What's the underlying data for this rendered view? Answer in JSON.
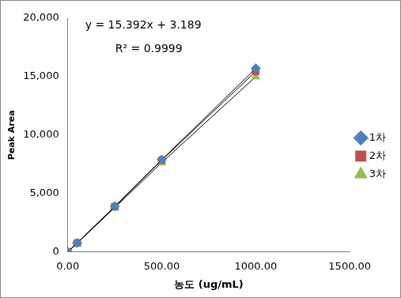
{
  "chart_data": {
    "type": "scatter",
    "x_label": "농도 (ug/mL)",
    "y_label": "Peak Area",
    "annotations": [
      "y = 15.392x + 3.189",
      "R² = 0.9999"
    ],
    "x": [
      0,
      50,
      250,
      500,
      1000
    ],
    "series": [
      {
        "name": "1차",
        "color": "#4f81bd",
        "marker": "diamond",
        "values": [
          0,
          780,
          3900,
          7900,
          15700
        ]
      },
      {
        "name": "2차",
        "color": "#c0504d",
        "marker": "square",
        "values": [
          0,
          770,
          3880,
          7850,
          15450
        ]
      },
      {
        "name": "3차",
        "color": "#9bbb59",
        "marker": "triangle",
        "values": [
          0,
          760,
          3800,
          7650,
          15000
        ]
      }
    ],
    "xlim": [
      0,
      1500
    ],
    "xticks": [
      {
        "value": 0,
        "label": "0.00"
      },
      {
        "value": 500,
        "label": "500.00"
      },
      {
        "value": 1000,
        "label": "1000.00"
      },
      {
        "value": 1500,
        "label": "1500.00"
      }
    ],
    "ylim": [
      0,
      20000
    ],
    "yticks": [
      0,
      {
        "value": 5000,
        "label": "5,000"
      },
      {
        "value": 10000,
        "label": "10,000"
      },
      {
        "value": 15000,
        "label": "15,000"
      },
      {
        "value": 20000,
        "label": "20,000"
      }
    ],
    "grid": false,
    "legend": "right"
  }
}
